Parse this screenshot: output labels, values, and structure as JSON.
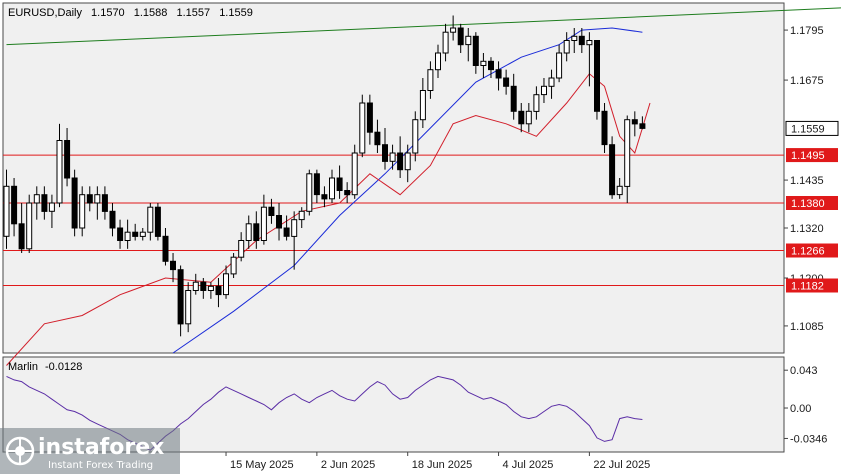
{
  "chart_data": {
    "type": "candlestick",
    "header": {
      "symbol_tf": "EURUSD,Daily",
      "open": "1.1570",
      "high": "1.1588",
      "low": "1.1557",
      "close": "1.1559"
    },
    "price_axis": {
      "range": [
        1.102,
        1.186
      ],
      "ticks": [
        "1.1795",
        "1.1675",
        "1.1435",
        "1.1320",
        "1.1200",
        "1.1085"
      ]
    },
    "current_price": {
      "value": 1.1559,
      "label": "1.1559"
    },
    "levels": [
      {
        "value": 1.1495,
        "label": "1.1495"
      },
      {
        "value": 1.138,
        "label": "1.1380"
      },
      {
        "value": 1.1266,
        "label": "1.1266"
      },
      {
        "value": 1.1182,
        "label": "1.1182"
      }
    ],
    "trendline": {
      "from": {
        "bar": 0,
        "price": 1.176
      },
      "to": {
        "bar": 125,
        "price": 1.186
      }
    },
    "date_axis": {
      "labels": [
        {
          "bar": 29,
          "text": "15 May 2025"
        },
        {
          "bar": 41,
          "text": "2 Jun 2025"
        },
        {
          "bar": 53,
          "text": "18 Jun 2025"
        },
        {
          "bar": 65,
          "text": "4 Jul 2025"
        },
        {
          "bar": 77,
          "text": "22 Jul 2025"
        }
      ]
    },
    "candles": [
      [
        1.13,
        1.146,
        1.127,
        1.142
      ],
      [
        1.142,
        1.144,
        1.13,
        1.133
      ],
      [
        1.133,
        1.138,
        1.126,
        1.127
      ],
      [
        1.127,
        1.14,
        1.126,
        1.138
      ],
      [
        1.138,
        1.142,
        1.134,
        1.14
      ],
      [
        1.14,
        1.142,
        1.134,
        1.136
      ],
      [
        1.136,
        1.14,
        1.132,
        1.138
      ],
      [
        1.138,
        1.157,
        1.137,
        1.153
      ],
      [
        1.153,
        1.156,
        1.142,
        1.144
      ],
      [
        1.144,
        1.146,
        1.13,
        1.132
      ],
      [
        1.132,
        1.142,
        1.13,
        1.14
      ],
      [
        1.14,
        1.142,
        1.136,
        1.138
      ],
      [
        1.138,
        1.142,
        1.134,
        1.14
      ],
      [
        1.14,
        1.142,
        1.134,
        1.136
      ],
      [
        1.136,
        1.138,
        1.13,
        1.132
      ],
      [
        1.132,
        1.134,
        1.127,
        1.129
      ],
      [
        1.129,
        1.134,
        1.127,
        1.131
      ],
      [
        1.131,
        1.133,
        1.129,
        1.13
      ],
      [
        1.13,
        1.132,
        1.129,
        1.131
      ],
      [
        1.131,
        1.138,
        1.129,
        1.137
      ],
      [
        1.137,
        1.138,
        1.129,
        1.13
      ],
      [
        1.13,
        1.132,
        1.123,
        1.124
      ],
      [
        1.124,
        1.126,
        1.119,
        1.122
      ],
      [
        1.122,
        1.123,
        1.106,
        1.109
      ],
      [
        1.109,
        1.119,
        1.107,
        1.117
      ],
      [
        1.117,
        1.121,
        1.116,
        1.119
      ],
      [
        1.119,
        1.12,
        1.115,
        1.117
      ],
      [
        1.117,
        1.119,
        1.115,
        1.118
      ],
      [
        1.118,
        1.12,
        1.113,
        1.116
      ],
      [
        1.116,
        1.123,
        1.115,
        1.121
      ],
      [
        1.121,
        1.126,
        1.12,
        1.125
      ],
      [
        1.125,
        1.131,
        1.124,
        1.129
      ],
      [
        1.129,
        1.135,
        1.127,
        1.133
      ],
      [
        1.133,
        1.136,
        1.127,
        1.129
      ],
      [
        1.129,
        1.14,
        1.128,
        1.137
      ],
      [
        1.137,
        1.139,
        1.133,
        1.135
      ],
      [
        1.135,
        1.138,
        1.129,
        1.132
      ],
      [
        1.132,
        1.135,
        1.129,
        1.13
      ],
      [
        1.13,
        1.136,
        1.122,
        1.134
      ],
      [
        1.134,
        1.137,
        1.132,
        1.136
      ],
      [
        1.136,
        1.146,
        1.135,
        1.145
      ],
      [
        1.145,
        1.146,
        1.138,
        1.14
      ],
      [
        1.14,
        1.142,
        1.137,
        1.139
      ],
      [
        1.139,
        1.146,
        1.138,
        1.144
      ],
      [
        1.144,
        1.147,
        1.139,
        1.141
      ],
      [
        1.141,
        1.143,
        1.138,
        1.14
      ],
      [
        1.14,
        1.152,
        1.139,
        1.15
      ],
      [
        1.15,
        1.164,
        1.149,
        1.162
      ],
      [
        1.162,
        1.164,
        1.152,
        1.155
      ],
      [
        1.155,
        1.158,
        1.15,
        1.152
      ],
      [
        1.152,
        1.156,
        1.146,
        1.148
      ],
      [
        1.148,
        1.152,
        1.146,
        1.15
      ],
      [
        1.15,
        1.154,
        1.144,
        1.146
      ],
      [
        1.146,
        1.152,
        1.143,
        1.15
      ],
      [
        1.15,
        1.16,
        1.148,
        1.158
      ],
      [
        1.158,
        1.168,
        1.156,
        1.165
      ],
      [
        1.165,
        1.172,
        1.163,
        1.17
      ],
      [
        1.17,
        1.176,
        1.168,
        1.174
      ],
      [
        1.174,
        1.181,
        1.172,
        1.179
      ],
      [
        1.179,
        1.183,
        1.177,
        1.18
      ],
      [
        1.18,
        1.181,
        1.174,
        1.176
      ],
      [
        1.176,
        1.18,
        1.172,
        1.178
      ],
      [
        1.178,
        1.179,
        1.169,
        1.171
      ],
      [
        1.171,
        1.174,
        1.168,
        1.172
      ],
      [
        1.172,
        1.173,
        1.168,
        1.17
      ],
      [
        1.17,
        1.172,
        1.165,
        1.168
      ],
      [
        1.168,
        1.17,
        1.164,
        1.166
      ],
      [
        1.166,
        1.169,
        1.158,
        1.16
      ],
      [
        1.16,
        1.162,
        1.155,
        1.157
      ],
      [
        1.157,
        1.162,
        1.155,
        1.16
      ],
      [
        1.16,
        1.166,
        1.158,
        1.164
      ],
      [
        1.164,
        1.168,
        1.162,
        1.166
      ],
      [
        1.166,
        1.17,
        1.163,
        1.168
      ],
      [
        1.168,
        1.176,
        1.167,
        1.174
      ],
      [
        1.174,
        1.179,
        1.172,
        1.177
      ],
      [
        1.177,
        1.18,
        1.174,
        1.178
      ],
      [
        1.178,
        1.18,
        1.174,
        1.176
      ],
      [
        1.176,
        1.179,
        1.166,
        1.177
      ],
      [
        1.177,
        1.177,
        1.158,
        1.16
      ],
      [
        1.16,
        1.162,
        1.15,
        1.152
      ],
      [
        1.152,
        1.154,
        1.139,
        1.14
      ],
      [
        1.14,
        1.144,
        1.139,
        1.142
      ],
      [
        1.142,
        1.159,
        1.138,
        1.158
      ],
      [
        1.158,
        1.16,
        1.154,
        1.157
      ],
      [
        1.157,
        1.1588,
        1.1557,
        1.1559
      ]
    ],
    "ma_blue": [
      {
        "bar": 22,
        "price": 1.102
      },
      {
        "bar": 30,
        "price": 1.112
      },
      {
        "bar": 38,
        "price": 1.123
      },
      {
        "bar": 44,
        "price": 1.135
      },
      {
        "bar": 50,
        "price": 1.145
      },
      {
        "bar": 56,
        "price": 1.156
      },
      {
        "bar": 62,
        "price": 1.167
      },
      {
        "bar": 68,
        "price": 1.173
      },
      {
        "bar": 73,
        "price": 1.176
      },
      {
        "bar": 76,
        "price": 1.1795
      },
      {
        "bar": 80,
        "price": 1.18
      },
      {
        "bar": 84,
        "price": 1.179
      }
    ],
    "ma_red": [
      {
        "bar": 0,
        "price": 1.099
      },
      {
        "bar": 5,
        "price": 1.109
      },
      {
        "bar": 10,
        "price": 1.111
      },
      {
        "bar": 15,
        "price": 1.116
      },
      {
        "bar": 21,
        "price": 1.12
      },
      {
        "bar": 27,
        "price": 1.119
      },
      {
        "bar": 33,
        "price": 1.129
      },
      {
        "bar": 39,
        "price": 1.136
      },
      {
        "bar": 44,
        "price": 1.138
      },
      {
        "bar": 48,
        "price": 1.145
      },
      {
        "bar": 52,
        "price": 1.14
      },
      {
        "bar": 56,
        "price": 1.147
      },
      {
        "bar": 59,
        "price": 1.157
      },
      {
        "bar": 62,
        "price": 1.159
      },
      {
        "bar": 66,
        "price": 1.157
      },
      {
        "bar": 70,
        "price": 1.154
      },
      {
        "bar": 74,
        "price": 1.162
      },
      {
        "bar": 77,
        "price": 1.169
      },
      {
        "bar": 79,
        "price": 1.166
      },
      {
        "bar": 81,
        "price": 1.154
      },
      {
        "bar": 83,
        "price": 1.15
      },
      {
        "bar": 85,
        "price": 1.162
      }
    ],
    "indicator": {
      "name": "Marlin",
      "value_label": "-0.0128",
      "range": [
        -0.05,
        0.058
      ],
      "ticks": [
        {
          "value": 0.043,
          "label": "0.043"
        },
        {
          "value": 0.0,
          "label": "0.00"
        },
        {
          "value": -0.0346,
          "label": "-0.0346"
        }
      ],
      "values": [
        0.036,
        0.032,
        0.03,
        0.024,
        0.02,
        0.016,
        0.01,
        0.004,
        -0.002,
        -0.004,
        -0.008,
        -0.014,
        -0.018,
        -0.022,
        -0.026,
        -0.03,
        -0.036,
        -0.04,
        -0.044,
        -0.048,
        -0.04,
        -0.032,
        -0.026,
        -0.018,
        -0.012,
        -0.004,
        0.004,
        0.01,
        0.018,
        0.024,
        0.02,
        0.016,
        0.012,
        0.008,
        0.004,
        -0.002,
        0.006,
        0.012,
        0.016,
        0.01,
        0.006,
        0.012,
        0.016,
        0.02,
        0.014,
        0.01,
        0.008,
        0.016,
        0.024,
        0.03,
        0.026,
        0.016,
        0.01,
        0.012,
        0.02,
        0.026,
        0.032,
        0.036,
        0.034,
        0.032,
        0.026,
        0.018,
        0.014,
        0.01,
        0.012,
        0.008,
        0.004,
        -0.004,
        -0.01,
        -0.012,
        -0.01,
        -0.004,
        0.002,
        0.004,
        0.002,
        -0.004,
        -0.012,
        -0.02,
        -0.034,
        -0.038,
        -0.036,
        -0.012,
        -0.01,
        -0.012,
        -0.013
      ]
    }
  },
  "watermark": {
    "brand": "instaforex",
    "tagline": "Instant Forex Trading"
  }
}
